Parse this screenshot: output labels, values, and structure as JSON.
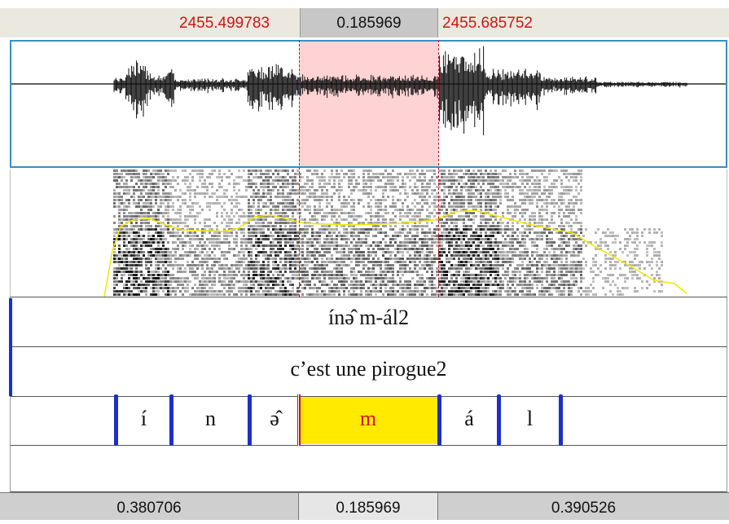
{
  "selection": {
    "start_time": "2455.499783",
    "duration": "0.185969",
    "end_time": "2455.685752"
  },
  "colors": {
    "selection_fill": "#ffd3d3",
    "selection_line": "#d01414",
    "boundary": "#1c2fc9",
    "selected_interval": "#ffea00",
    "pitch_curve": "#f2e600",
    "waveform_border": "#3a8fc0"
  },
  "tiers": {
    "tier1_text": "ínə̂ m-ál2",
    "tier2_text": "c’est une pirogue2",
    "segments": [
      "í",
      "n",
      "ə̂",
      "m",
      "á",
      "l"
    ],
    "selected_segment": "m"
  },
  "bottom": {
    "left_duration": "0.380706",
    "selected_duration": "0.185969",
    "right_duration": "0.390526"
  }
}
